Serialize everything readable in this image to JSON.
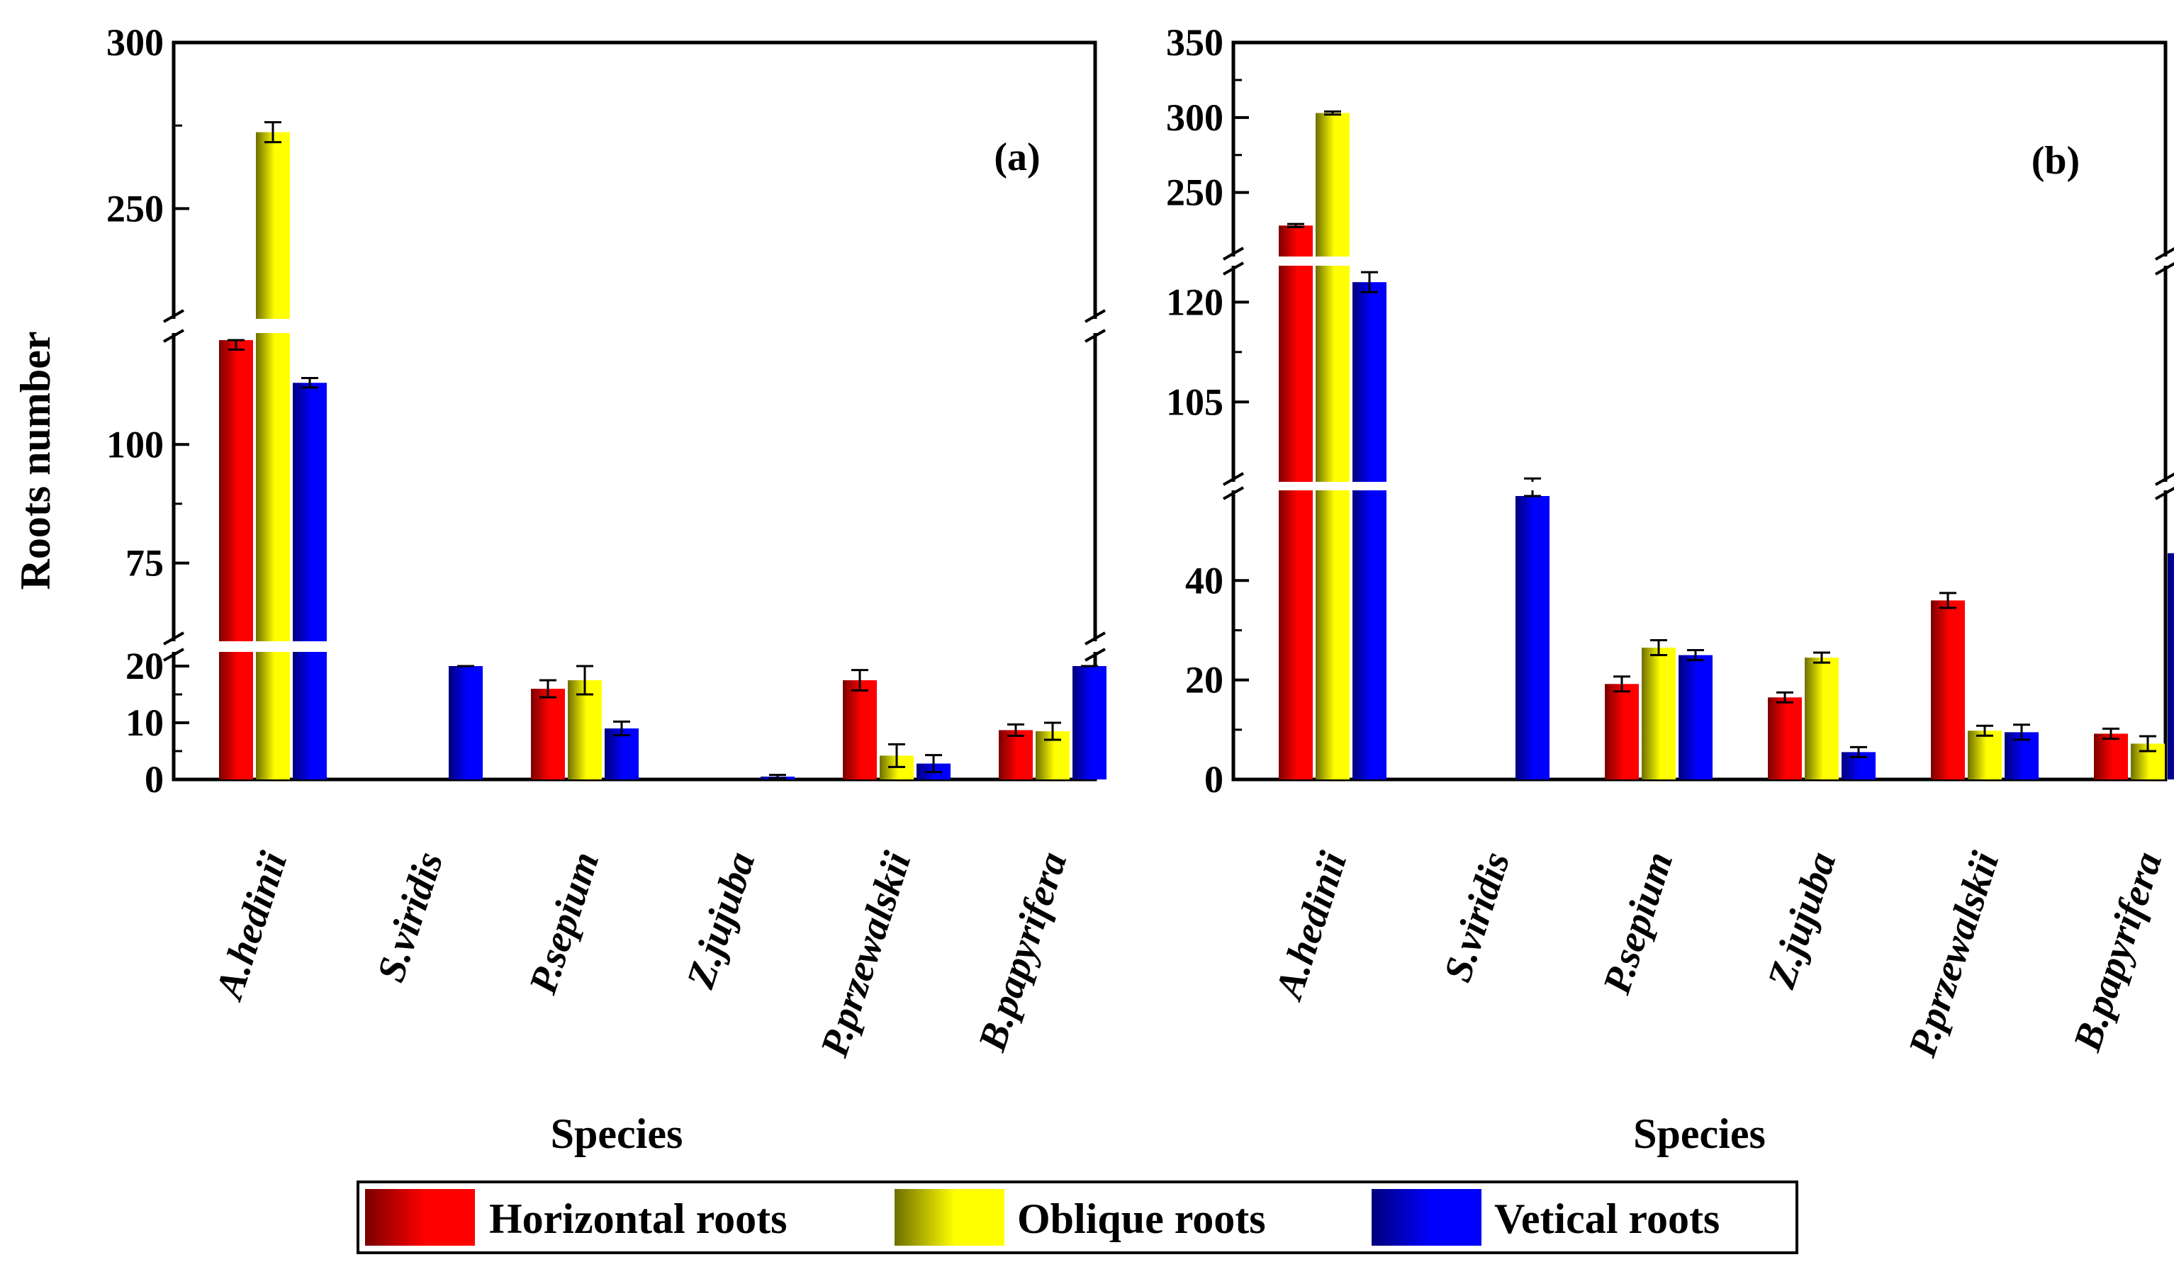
{
  "figure": {
    "y_axis_title": "Roots number",
    "legend": [
      {
        "name": "Horizontal roots",
        "color": "#ff0000"
      },
      {
        "name": "Oblique roots",
        "color": "#ffff00"
      },
      {
        "name": "Vetical roots",
        "color": "#0000ff"
      }
    ]
  },
  "chart_data": [
    {
      "type": "bar",
      "panel_label": "(a)",
      "xlabel": "Species",
      "ylabel": "Roots number",
      "categories": [
        "A.hedinii",
        "S.viridis",
        "P.sepium",
        "Z.jujuba",
        "P.przewalskii",
        "B.papyrifera"
      ],
      "series": [
        {
          "name": "Horizontal roots",
          "values": [
            122,
            0,
            16,
            0,
            17.5,
            8.7
          ],
          "errors": [
            2,
            0,
            1.5,
            0,
            1.8,
            1
          ]
        },
        {
          "name": "Oblique roots",
          "values": [
            273,
            0,
            17.5,
            0,
            4.2,
            8.5
          ],
          "errors": [
            3,
            0,
            2.5,
            0,
            2,
            1.5
          ]
        },
        {
          "name": "Vetical roots",
          "values": [
            113,
            55,
            9,
            0.5,
            2.8,
            23.5
          ],
          "errors": [
            1,
            1,
            1.2,
            0.3,
            1.5,
            1.5
          ]
        }
      ],
      "y_broken_axis": [
        {
          "range": [
            0,
            20
          ],
          "ticks": [
            0,
            10,
            20
          ]
        },
        {
          "range": [
            60,
            122
          ],
          "ticks": [
            75,
            100
          ]
        },
        {
          "range": [
            220,
            300
          ],
          "ticks": [
            250,
            300
          ]
        }
      ]
    },
    {
      "type": "bar",
      "panel_label": "(b)",
      "xlabel": "Species",
      "ylabel": "",
      "categories": [
        "A.hedinii",
        "S.viridis",
        "P.sepium",
        "Z.jujuba",
        "P.przewalskii",
        "B.papyrifera"
      ],
      "series": [
        {
          "name": "Horizontal roots",
          "values": [
            228,
            0,
            19.2,
            16.5,
            36,
            9.2
          ],
          "errors": [
            1,
            0,
            1.5,
            1,
            1.5,
            1
          ]
        },
        {
          "name": "Oblique roots",
          "values": [
            303,
            0,
            26.5,
            24.5,
            9.8,
            7.2
          ],
          "errors": [
            1,
            0,
            1.5,
            1,
            1,
            1.5
          ]
        },
        {
          "name": "Vetical roots",
          "values": [
            123,
            92,
            25,
            5.5,
            9.5,
            45.5
          ],
          "errors": [
            1.5,
            1.5,
            1,
            1,
            1.5,
            0.5
          ]
        }
      ],
      "y_broken_axis": [
        {
          "range": [
            0,
            57
          ],
          "ticks": [
            0,
            20,
            40
          ]
        },
        {
          "range": [
            93,
            126
          ],
          "ticks": [
            105,
            120
          ]
        },
        {
          "range": [
            213,
            350
          ],
          "ticks": [
            250,
            300,
            350
          ]
        }
      ]
    }
  ]
}
